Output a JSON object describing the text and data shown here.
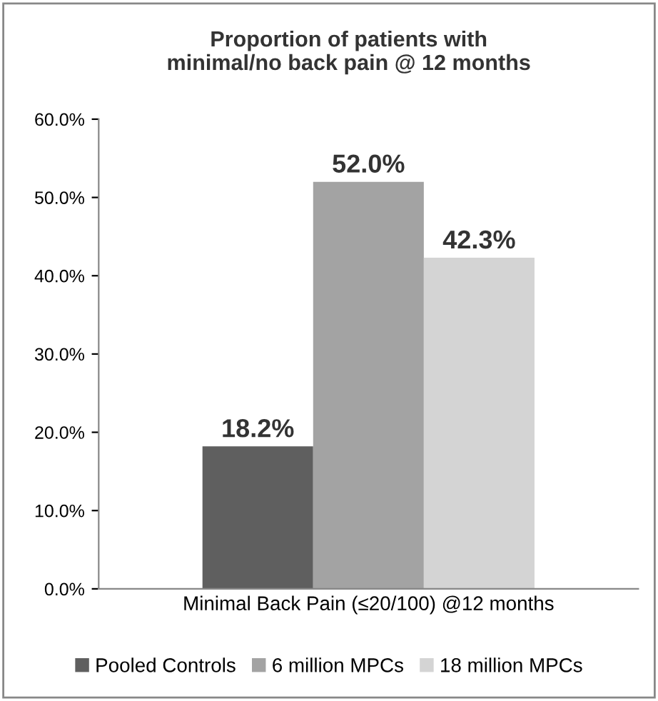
{
  "chart_data": {
    "type": "bar",
    "title": "Proportion of patients with\nminimal/no back pain @ 12 months",
    "categories": [
      "Minimal Back Pain (≤20/100) @12 months"
    ],
    "series": [
      {
        "name": "Pooled Controls",
        "color": "#5f5f5f",
        "values": [
          18.2
        ],
        "value_labels": [
          "18.2%"
        ]
      },
      {
        "name": "6 million MPCs",
        "color": "#a3a3a3",
        "values": [
          52.0
        ],
        "value_labels": [
          "52.0%"
        ]
      },
      {
        "name": "18 million MPCs",
        "color": "#d4d4d4",
        "values": [
          42.3
        ],
        "value_labels": [
          "42.3%"
        ]
      }
    ],
    "ylim": [
      0,
      60
    ],
    "yticks": [
      {
        "value": 0,
        "label": "0.0%"
      },
      {
        "value": 10,
        "label": "10.0%"
      },
      {
        "value": 20,
        "label": "20.0%"
      },
      {
        "value": 30,
        "label": "30.0%"
      },
      {
        "value": 40,
        "label": "40.0%"
      },
      {
        "value": 50,
        "label": "50.0%"
      },
      {
        "value": 60,
        "label": "60.0%"
      }
    ],
    "grid": false,
    "legend": "bottom"
  }
}
